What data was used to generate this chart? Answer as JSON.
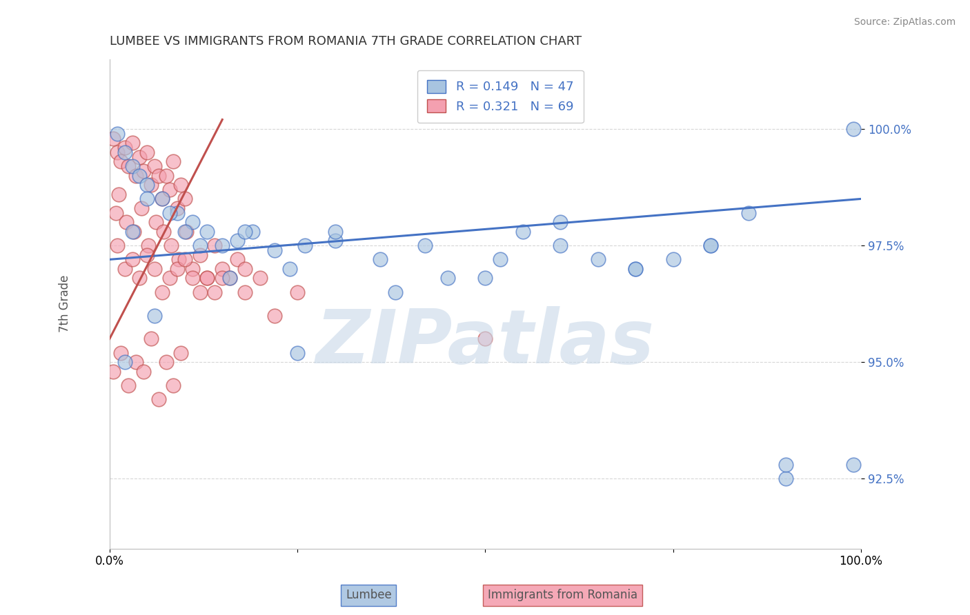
{
  "title": "LUMBEE VS IMMIGRANTS FROM ROMANIA 7TH GRADE CORRELATION CHART",
  "source": "Source: ZipAtlas.com",
  "ylabel": "7th Grade",
  "xlim": [
    0.0,
    100.0
  ],
  "ylim": [
    91.0,
    101.5
  ],
  "yticks": [
    92.5,
    95.0,
    97.5,
    100.0
  ],
  "ytick_labels": [
    "92.5%",
    "95.0%",
    "97.5%",
    "100.0%"
  ],
  "lumbee_R": 0.149,
  "lumbee_N": 47,
  "romania_R": 0.321,
  "romania_N": 69,
  "blue_color": "#a8c4e0",
  "pink_color": "#f4a0b0",
  "blue_line_color": "#4472C4",
  "pink_line_color": "#C0504D",
  "watermark": "ZIPatlas",
  "watermark_color": "#c8d8e8",
  "lumbee_x": [
    1,
    2,
    3,
    4,
    5,
    7,
    9,
    11,
    13,
    15,
    17,
    19,
    22,
    26,
    30,
    36,
    42,
    50,
    55,
    60,
    65,
    70,
    75,
    80,
    85,
    90,
    99,
    3,
    5,
    8,
    12,
    18,
    24,
    30,
    38,
    45,
    52,
    60,
    70,
    80,
    90,
    99,
    2,
    6,
    10,
    16,
    25
  ],
  "lumbee_y": [
    99.9,
    99.5,
    99.2,
    99.0,
    98.8,
    98.5,
    98.2,
    98.0,
    97.8,
    97.5,
    97.6,
    97.8,
    97.4,
    97.5,
    97.6,
    97.2,
    97.5,
    96.8,
    97.8,
    98.0,
    97.2,
    97.0,
    97.2,
    97.5,
    98.2,
    92.5,
    100.0,
    97.8,
    98.5,
    98.2,
    97.5,
    97.8,
    97.0,
    97.8,
    96.5,
    96.8,
    97.2,
    97.5,
    97.0,
    97.5,
    92.8,
    92.8,
    95.0,
    96.0,
    97.8,
    96.8,
    95.2
  ],
  "romania_x": [
    0.5,
    1,
    1.5,
    2,
    2.5,
    3,
    3.5,
    4,
    4.5,
    5,
    5.5,
    6,
    6.5,
    7,
    7.5,
    8,
    8.5,
    9,
    9.5,
    10,
    0.8,
    1.2,
    2.2,
    3.2,
    4.2,
    5.2,
    6.2,
    7.2,
    8.2,
    9.2,
    10.2,
    11,
    12,
    13,
    14,
    15,
    16,
    17,
    18,
    1,
    2,
    3,
    4,
    5,
    6,
    7,
    8,
    9,
    10,
    11,
    12,
    13,
    14,
    15,
    0.5,
    1.5,
    2.5,
    3.5,
    4.5,
    5.5,
    6.5,
    7.5,
    8.5,
    9.5,
    50,
    18,
    20,
    22,
    25
  ],
  "romania_y": [
    99.8,
    99.5,
    99.3,
    99.6,
    99.2,
    99.7,
    99.0,
    99.4,
    99.1,
    99.5,
    98.8,
    99.2,
    99.0,
    98.5,
    99.0,
    98.7,
    99.3,
    98.3,
    98.8,
    98.5,
    98.2,
    98.6,
    98.0,
    97.8,
    98.3,
    97.5,
    98.0,
    97.8,
    97.5,
    97.2,
    97.8,
    97.0,
    97.3,
    96.8,
    97.5,
    97.0,
    96.8,
    97.2,
    97.0,
    97.5,
    97.0,
    97.2,
    96.8,
    97.3,
    97.0,
    96.5,
    96.8,
    97.0,
    97.2,
    96.8,
    96.5,
    96.8,
    96.5,
    96.8,
    94.8,
    95.2,
    94.5,
    95.0,
    94.8,
    95.5,
    94.2,
    95.0,
    94.5,
    95.2,
    95.5,
    96.5,
    96.8,
    96.0,
    96.5
  ],
  "blue_trend_x": [
    0,
    100
  ],
  "blue_trend_y": [
    97.2,
    98.5
  ],
  "pink_trend_x": [
    0,
    15
  ],
  "pink_trend_y": [
    95.5,
    100.2
  ]
}
